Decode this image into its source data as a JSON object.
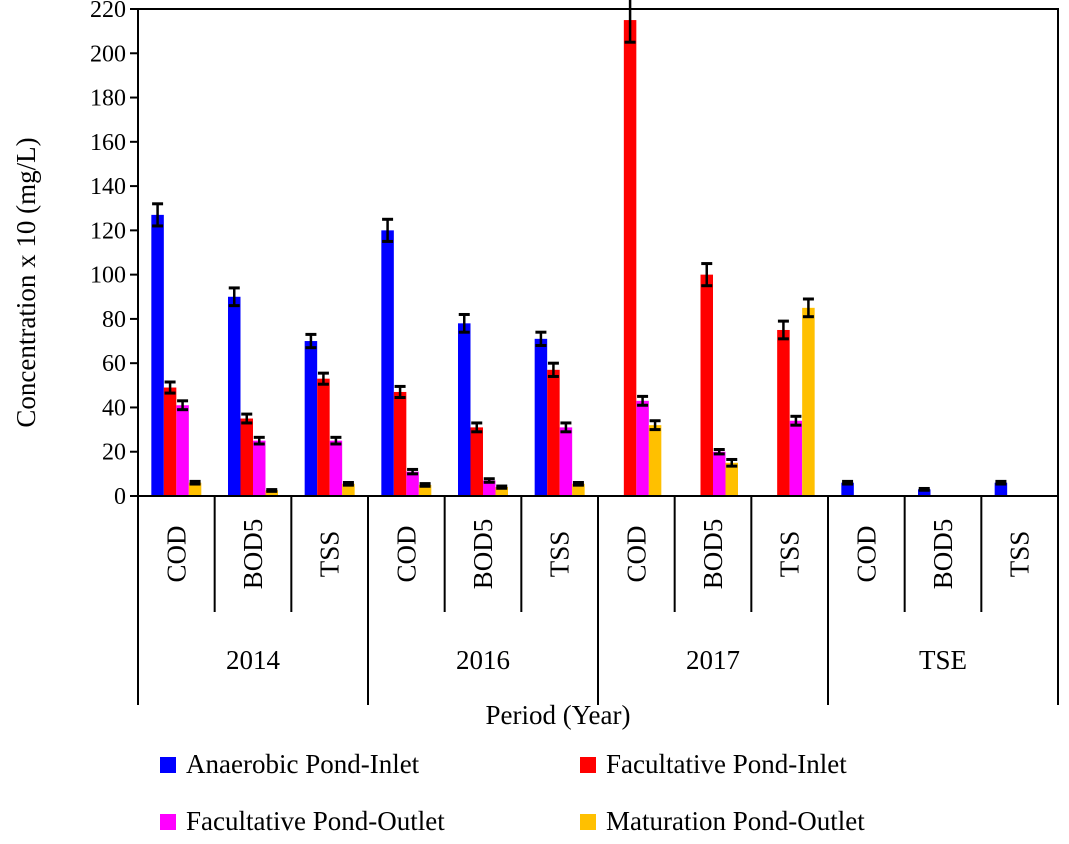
{
  "chart_data": {
    "type": "bar",
    "xlabel": "Period (Year)",
    "ylabel": "Concentration x 10  (mg/L)",
    "ylim": [
      0,
      220
    ],
    "ytick_step": 20,
    "groups": [
      {
        "label": "2014",
        "categories": [
          "COD",
          "BOD5",
          "TSS"
        ]
      },
      {
        "label": "2016",
        "categories": [
          "COD",
          "BOD5",
          "TSS"
        ]
      },
      {
        "label": "2017",
        "categories": [
          "COD",
          "BOD5",
          "TSS"
        ]
      },
      {
        "label": "TSE",
        "categories": [
          "COD",
          "BOD5",
          "TSS"
        ]
      }
    ],
    "series": [
      {
        "name": "Anaerobic Pond-Inlet",
        "color": "#0000ff",
        "values": [
          127,
          90,
          70,
          120,
          78,
          71,
          null,
          null,
          null,
          6,
          3,
          6
        ],
        "errors": [
          5,
          4,
          3,
          5,
          4,
          3,
          null,
          null,
          null,
          0.6,
          0.4,
          0.6
        ]
      },
      {
        "name": "Facultative Pond-Inlet",
        "color": "#ff0000",
        "values": [
          49,
          35,
          53,
          47,
          31,
          57,
          215,
          100,
          75,
          null,
          null,
          null
        ],
        "errors": [
          2.5,
          2,
          2.5,
          2.5,
          2,
          3,
          10,
          5,
          4,
          null,
          null,
          null
        ]
      },
      {
        "name": "Facultative Pond-Outlet",
        "color": "#ff00ff",
        "values": [
          41,
          25,
          25,
          11,
          7,
          31,
          43,
          20,
          34,
          null,
          null,
          null
        ],
        "errors": [
          2,
          1.5,
          1.5,
          1,
          0.8,
          2,
          2,
          1,
          2,
          null,
          null,
          null
        ]
      },
      {
        "name": "Maturation Pond-Outlet",
        "color": "#ffc000",
        "values": [
          6,
          2.5,
          5.5,
          5,
          4,
          5.5,
          32,
          15,
          85,
          null,
          null,
          null
        ],
        "errors": [
          0.6,
          0.4,
          0.6,
          0.6,
          0.5,
          0.6,
          2,
          1.5,
          4,
          null,
          null,
          null
        ]
      }
    ],
    "legend_placement": "bottom",
    "grid": false
  }
}
